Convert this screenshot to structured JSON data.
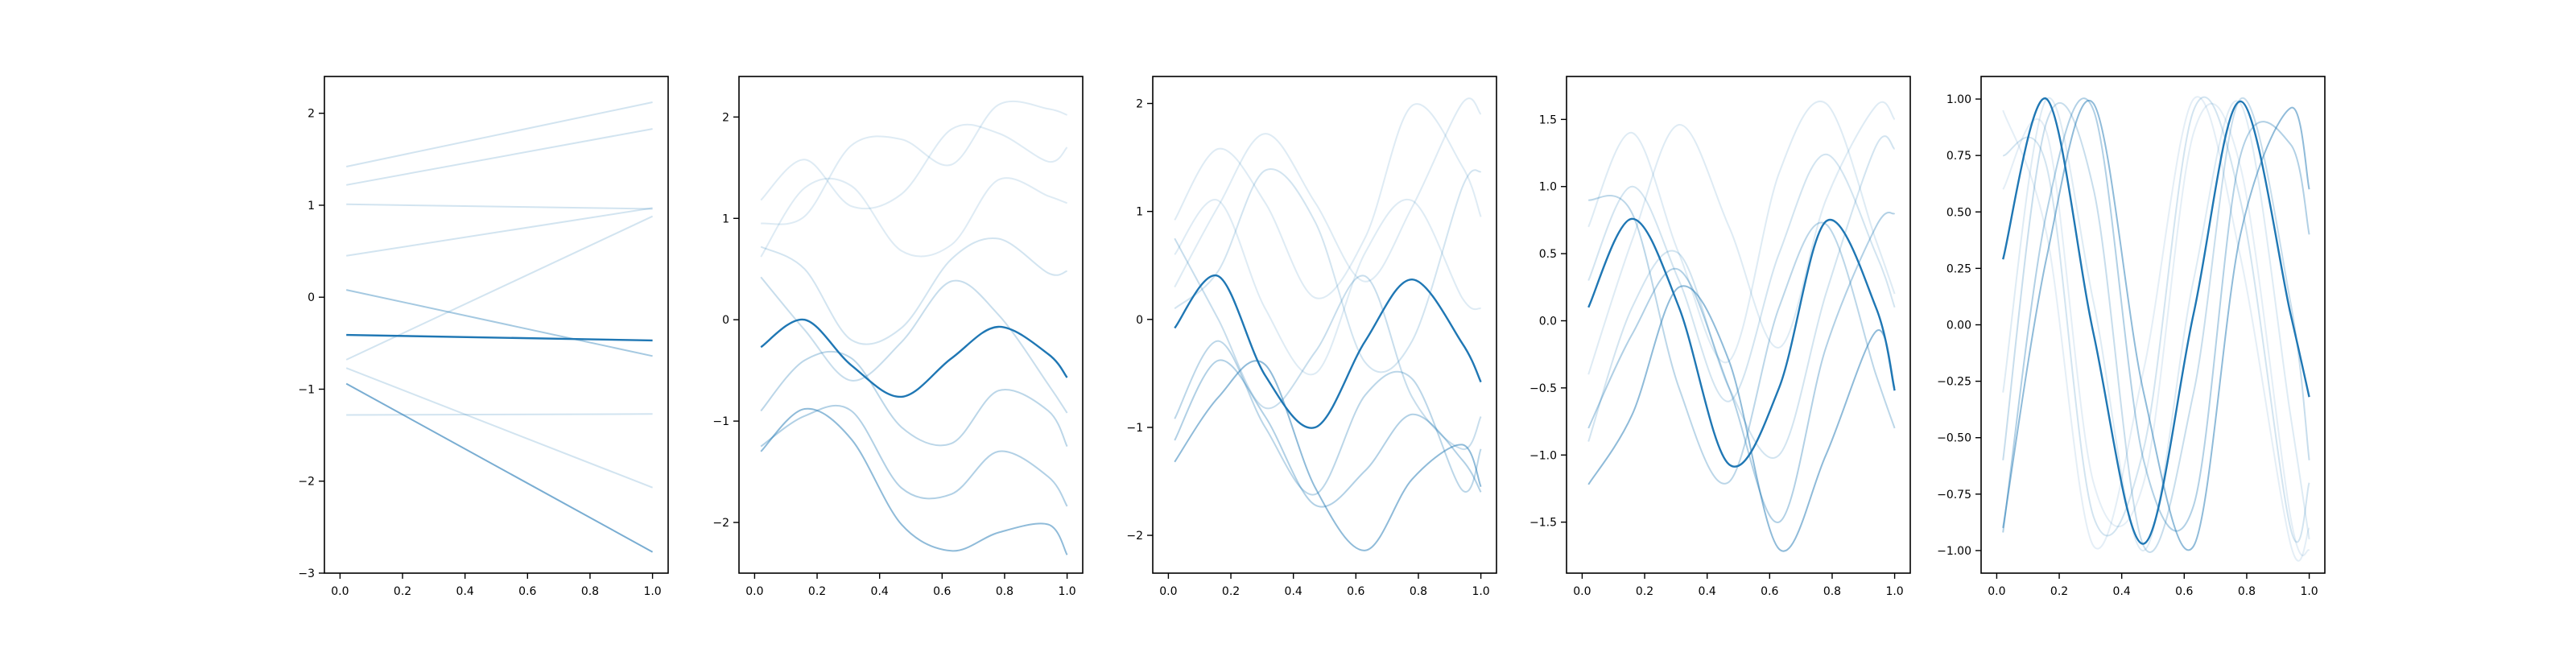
{
  "chart_data": [
    {
      "type": "line",
      "xlim": [
        -0.05,
        1.05
      ],
      "ylim": [
        -3.0,
        2.4
      ],
      "xticks": [
        "0.0",
        "0.2",
        "0.4",
        "0.6",
        "0.8",
        "1.0"
      ],
      "xtick_values": [
        0.0,
        0.2,
        0.4,
        0.6,
        0.8,
        1.0
      ],
      "yticks": [
        "−3",
        "−2",
        "−1",
        "0",
        "1",
        "2"
      ],
      "ytick_values": [
        -3,
        -2,
        -1,
        0,
        1,
        2
      ],
      "grid": false,
      "series": [
        {
          "color": "#1f77b4",
          "opacity": 0.2,
          "x": [
            0.02,
            1.0
          ],
          "y": [
            1.42,
            2.12
          ]
        },
        {
          "color": "#1f77b4",
          "opacity": 0.2,
          "x": [
            0.02,
            1.0
          ],
          "y": [
            1.22,
            1.83
          ]
        },
        {
          "color": "#1f77b4",
          "opacity": 0.2,
          "x": [
            0.02,
            1.0
          ],
          "y": [
            1.01,
            0.96
          ]
        },
        {
          "color": "#1f77b4",
          "opacity": 0.2,
          "x": [
            0.02,
            1.0
          ],
          "y": [
            0.45,
            0.97
          ]
        },
        {
          "color": "#1f77b4",
          "opacity": 0.2,
          "x": [
            0.02,
            1.0
          ],
          "y": [
            -0.68,
            0.88
          ]
        },
        {
          "color": "#1f77b4",
          "opacity": 0.4,
          "x": [
            0.02,
            1.0
          ],
          "y": [
            0.08,
            -0.64
          ]
        },
        {
          "color": "#1f77b4",
          "opacity": 0.2,
          "x": [
            0.02,
            1.0
          ],
          "y": [
            -0.77,
            -2.07
          ]
        },
        {
          "color": "#1f77b4",
          "opacity": 0.2,
          "x": [
            0.02,
            1.0
          ],
          "y": [
            -1.28,
            -1.27
          ]
        },
        {
          "color": "#1f77b4",
          "opacity": 0.6,
          "x": [
            0.02,
            1.0
          ],
          "y": [
            -0.94,
            -2.77
          ]
        },
        {
          "color": "#1f77b4",
          "opacity": 1.0,
          "x": [
            0.02,
            1.0
          ],
          "y": [
            -0.41,
            -0.47
          ]
        }
      ]
    },
    {
      "type": "line",
      "xlim": [
        -0.05,
        1.05
      ],
      "ylim": [
        -2.5,
        2.4
      ],
      "xticks": [
        "0.0",
        "0.2",
        "0.4",
        "0.6",
        "0.8",
        "1.0"
      ],
      "xtick_values": [
        0.0,
        0.2,
        0.4,
        0.6,
        0.8,
        1.0
      ],
      "yticks": [
        "−2",
        "−1",
        "0",
        "1",
        "2"
      ],
      "ytick_values": [
        -2,
        -1,
        0,
        1,
        2
      ],
      "grid": false,
      "series": [
        {
          "color": "#1f77b4",
          "opacity": 0.15,
          "x": [
            0.02,
            0.16,
            0.31,
            0.47,
            0.63,
            0.78,
            0.94,
            1.0
          ],
          "y": [
            1.18,
            1.58,
            1.12,
            1.24,
            1.88,
            1.84,
            1.56,
            1.7
          ]
        },
        {
          "color": "#1f77b4",
          "opacity": 0.15,
          "x": [
            0.02,
            0.16,
            0.31,
            0.47,
            0.63,
            0.78,
            0.94,
            1.0
          ],
          "y": [
            0.95,
            1.02,
            1.72,
            1.78,
            1.53,
            2.12,
            2.08,
            2.02
          ]
        },
        {
          "color": "#1f77b4",
          "opacity": 0.15,
          "x": [
            0.02,
            0.16,
            0.31,
            0.47,
            0.63,
            0.78,
            0.94,
            1.0
          ],
          "y": [
            0.62,
            1.3,
            1.32,
            0.68,
            0.74,
            1.38,
            1.22,
            1.15
          ]
        },
        {
          "color": "#1f77b4",
          "opacity": 0.2,
          "x": [
            0.02,
            0.16,
            0.31,
            0.47,
            0.63,
            0.78,
            0.94,
            1.0
          ],
          "y": [
            0.72,
            0.5,
            -0.2,
            -0.08,
            0.6,
            0.8,
            0.46,
            0.48
          ]
        },
        {
          "color": "#1f77b4",
          "opacity": 0.25,
          "x": [
            0.02,
            0.16,
            0.31,
            0.47,
            0.63,
            0.78,
            0.94,
            1.0
          ],
          "y": [
            0.42,
            -0.1,
            -0.6,
            -0.22,
            0.38,
            0.05,
            -0.64,
            -0.92
          ]
        },
        {
          "color": "#1f77b4",
          "opacity": 0.3,
          "x": [
            0.02,
            0.16,
            0.31,
            0.47,
            0.63,
            0.78,
            0.94,
            1.0
          ],
          "y": [
            -0.9,
            -0.4,
            -0.38,
            -1.06,
            -1.22,
            -0.7,
            -0.9,
            -1.25
          ]
        },
        {
          "color": "#1f77b4",
          "opacity": 0.35,
          "x": [
            0.02,
            0.16,
            0.31,
            0.47,
            0.63,
            0.78,
            0.94,
            1.0
          ],
          "y": [
            -1.25,
            -0.95,
            -0.9,
            -1.66,
            -1.72,
            -1.3,
            -1.55,
            -1.84
          ]
        },
        {
          "color": "#1f77b4",
          "opacity": 0.5,
          "x": [
            0.02,
            0.16,
            0.31,
            0.47,
            0.63,
            0.78,
            0.94,
            1.0
          ],
          "y": [
            -1.3,
            -0.88,
            -1.18,
            -2.02,
            -2.28,
            -2.1,
            -2.02,
            -2.32
          ]
        },
        {
          "color": "#1f77b4",
          "opacity": 1.0,
          "x": [
            0.02,
            0.16,
            0.31,
            0.47,
            0.63,
            0.78,
            0.94,
            1.0
          ],
          "y": [
            -0.27,
            0.0,
            -0.45,
            -0.76,
            -0.38,
            -0.07,
            -0.34,
            -0.57
          ]
        }
      ]
    },
    {
      "type": "line",
      "xlim": [
        -0.05,
        1.05
      ],
      "ylim": [
        -2.35,
        2.25
      ],
      "xticks": [
        "0.0",
        "0.2",
        "0.4",
        "0.6",
        "0.8",
        "1.0"
      ],
      "xtick_values": [
        0.0,
        0.2,
        0.4,
        0.6,
        0.8,
        1.0
      ],
      "yticks": [
        "−2",
        "−1",
        "0",
        "1",
        "2"
      ],
      "ytick_values": [
        -2,
        -1,
        0,
        1,
        2
      ],
      "grid": false,
      "series": [
        {
          "color": "#1f77b4",
          "opacity": 0.15,
          "x": [
            0.02,
            0.16,
            0.31,
            0.47,
            0.63,
            0.78,
            0.94,
            1.0
          ],
          "y": [
            0.92,
            1.58,
            1.08,
            0.2,
            0.76,
            1.98,
            1.42,
            0.95
          ]
        },
        {
          "color": "#1f77b4",
          "opacity": 0.15,
          "x": [
            0.02,
            0.16,
            0.31,
            0.47,
            0.63,
            0.78,
            0.94,
            1.0
          ],
          "y": [
            0.3,
            1.05,
            1.72,
            1.08,
            0.35,
            1.04,
            2.0,
            1.9
          ]
        },
        {
          "color": "#1f77b4",
          "opacity": 0.15,
          "x": [
            0.02,
            0.16,
            0.31,
            0.47,
            0.63,
            0.78,
            0.94,
            1.0
          ],
          "y": [
            0.6,
            1.1,
            0.1,
            -0.5,
            0.62,
            1.1,
            0.2,
            0.1
          ]
        },
        {
          "color": "#1f77b4",
          "opacity": 0.2,
          "x": [
            0.02,
            0.16,
            0.31,
            0.47,
            0.63,
            0.78,
            0.94,
            1.0
          ],
          "y": [
            0.1,
            0.45,
            1.38,
            0.9,
            -0.4,
            -0.2,
            1.22,
            1.37
          ]
        },
        {
          "color": "#1f77b4",
          "opacity": 0.25,
          "x": [
            0.02,
            0.16,
            0.31,
            0.47,
            0.63,
            0.78,
            0.94,
            1.0
          ],
          "y": [
            0.75,
            0.0,
            -0.82,
            -0.3,
            0.4,
            -0.72,
            -1.2,
            -0.9
          ]
        },
        {
          "color": "#1f77b4",
          "opacity": 0.3,
          "x": [
            0.02,
            0.16,
            0.31,
            0.47,
            0.63,
            0.78,
            0.94,
            1.0
          ],
          "y": [
            -0.92,
            -0.2,
            -1.0,
            -1.62,
            -0.7,
            -0.55,
            -1.58,
            -1.2
          ]
        },
        {
          "color": "#1f77b4",
          "opacity": 0.35,
          "x": [
            0.02,
            0.16,
            0.31,
            0.47,
            0.63,
            0.78,
            0.94,
            1.0
          ],
          "y": [
            -1.12,
            -0.38,
            -0.9,
            -1.72,
            -1.4,
            -0.88,
            -1.3,
            -1.6
          ]
        },
        {
          "color": "#1f77b4",
          "opacity": 0.5,
          "x": [
            0.02,
            0.16,
            0.31,
            0.47,
            0.63,
            0.78,
            0.94,
            1.0
          ],
          "y": [
            -1.32,
            -0.72,
            -0.42,
            -1.56,
            -2.14,
            -1.48,
            -1.16,
            -1.55
          ]
        },
        {
          "color": "#1f77b4",
          "opacity": 1.0,
          "x": [
            0.02,
            0.16,
            0.31,
            0.47,
            0.63,
            0.78,
            0.94,
            1.0
          ],
          "y": [
            -0.08,
            0.4,
            -0.52,
            -1.0,
            -0.2,
            0.37,
            -0.22,
            -0.58
          ]
        }
      ]
    },
    {
      "type": "line",
      "xlim": [
        -0.05,
        1.05
      ],
      "ylim": [
        -1.88,
        1.82
      ],
      "xticks": [
        "0.0",
        "0.2",
        "0.4",
        "0.6",
        "0.8",
        "1.0"
      ],
      "xtick_values": [
        0.0,
        0.2,
        0.4,
        0.6,
        0.8,
        1.0
      ],
      "yticks": [
        "−1.5",
        "−1.0",
        "−0.5",
        "0.0",
        "0.5",
        "1.0",
        "1.5"
      ],
      "ytick_values": [
        -1.5,
        -1.0,
        -0.5,
        0.0,
        0.5,
        1.0,
        1.5
      ],
      "grid": false,
      "series": [
        {
          "color": "#1f77b4",
          "opacity": 0.15,
          "x": [
            0.02,
            0.16,
            0.31,
            0.47,
            0.63,
            0.78,
            0.94,
            1.0
          ],
          "y": [
            0.7,
            1.4,
            0.5,
            -0.3,
            1.1,
            1.62,
            0.6,
            0.2
          ]
        },
        {
          "color": "#1f77b4",
          "opacity": 0.15,
          "x": [
            0.02,
            0.16,
            0.31,
            0.47,
            0.63,
            0.78,
            0.94,
            1.0
          ],
          "y": [
            -0.4,
            0.6,
            1.46,
            0.7,
            -0.2,
            0.9,
            1.6,
            1.5
          ]
        },
        {
          "color": "#1f77b4",
          "opacity": 0.2,
          "x": [
            0.02,
            0.16,
            0.31,
            0.47,
            0.63,
            0.78,
            0.94,
            1.0
          ],
          "y": [
            0.3,
            1.0,
            0.3,
            -0.6,
            0.5,
            1.24,
            0.5,
            0.1
          ]
        },
        {
          "color": "#1f77b4",
          "opacity": 0.2,
          "x": [
            0.02,
            0.16,
            0.31,
            0.47,
            0.63,
            0.78,
            0.94,
            1.0
          ],
          "y": [
            -0.9,
            0.1,
            0.5,
            -0.5,
            -1.0,
            0.2,
            1.3,
            1.28
          ]
        },
        {
          "color": "#1f77b4",
          "opacity": 0.3,
          "x": [
            0.02,
            0.16,
            0.31,
            0.47,
            0.63,
            0.78,
            0.94,
            1.0
          ],
          "y": [
            0.9,
            0.8,
            -0.5,
            -1.2,
            0.1,
            0.72,
            -0.4,
            -0.8
          ]
        },
        {
          "color": "#1f77b4",
          "opacity": 0.35,
          "x": [
            0.02,
            0.16,
            0.31,
            0.47,
            0.63,
            0.78,
            0.94,
            1.0
          ],
          "y": [
            -0.8,
            -0.1,
            0.38,
            -0.5,
            -1.5,
            -0.2,
            0.7,
            0.8
          ]
        },
        {
          "color": "#1f77b4",
          "opacity": 0.5,
          "x": [
            0.02,
            0.16,
            0.31,
            0.47,
            0.63,
            0.78,
            0.94,
            1.0
          ],
          "y": [
            -1.22,
            -0.7,
            0.25,
            -0.3,
            -1.7,
            -1.0,
            -0.08,
            -0.5
          ]
        },
        {
          "color": "#1f77b4",
          "opacity": 1.0,
          "x": [
            0.02,
            0.16,
            0.31,
            0.47,
            0.63,
            0.78,
            0.94,
            1.0
          ],
          "y": [
            0.1,
            0.76,
            0.1,
            -1.07,
            -0.5,
            0.74,
            0.1,
            -0.52
          ]
        }
      ]
    },
    {
      "type": "line",
      "xlim": [
        -0.05,
        1.05
      ],
      "ylim": [
        -1.1,
        1.1
      ],
      "xticks": [
        "0.0",
        "0.2",
        "0.4",
        "0.6",
        "0.8",
        "1.0"
      ],
      "xtick_values": [
        0.0,
        0.2,
        0.4,
        0.6,
        0.8,
        1.0
      ],
      "yticks": [
        "−1.00",
        "−0.75",
        "−0.50",
        "−0.25",
        "0.00",
        "0.25",
        "0.50",
        "0.75",
        "1.00"
      ],
      "ytick_values": [
        -1.0,
        -0.75,
        -0.5,
        -0.25,
        0.0,
        0.25,
        0.5,
        0.75,
        1.0
      ],
      "grid": false,
      "series": [
        {
          "color": "#1f77b4",
          "opacity": 0.12,
          "x": [
            0.02,
            0.16,
            0.31,
            0.47,
            0.63,
            0.78,
            0.94,
            1.0
          ],
          "y": [
            0.95,
            0.4,
            -0.98,
            -0.2,
            1.0,
            0.3,
            -0.97,
            -0.9
          ]
        },
        {
          "color": "#1f77b4",
          "opacity": 0.12,
          "x": [
            0.02,
            0.16,
            0.31,
            0.47,
            0.63,
            0.78,
            0.94,
            1.0
          ],
          "y": [
            0.6,
            0.85,
            -0.7,
            -0.7,
            0.85,
            0.7,
            -0.85,
            -1.0
          ]
        },
        {
          "color": "#1f77b4",
          "opacity": 0.15,
          "x": [
            0.02,
            0.16,
            0.31,
            0.47,
            0.63,
            0.78,
            0.94,
            1.0
          ],
          "y": [
            -0.3,
            1.0,
            0.1,
            -1.0,
            0.2,
            0.98,
            -0.4,
            -0.95
          ]
        },
        {
          "color": "#1f77b4",
          "opacity": 0.2,
          "x": [
            0.02,
            0.16,
            0.31,
            0.47,
            0.63,
            0.78,
            0.94,
            1.0
          ],
          "y": [
            0.75,
            0.7,
            -0.85,
            -0.55,
            0.95,
            0.55,
            -0.9,
            -0.7
          ]
        },
        {
          "color": "#1f77b4",
          "opacity": 0.25,
          "x": [
            0.02,
            0.16,
            0.31,
            0.47,
            0.63,
            0.78,
            0.94,
            1.0
          ],
          "y": [
            -0.6,
            0.9,
            0.6,
            -0.98,
            -0.3,
            1.0,
            0.1,
            -0.6
          ]
        },
        {
          "color": "#1f77b4",
          "opacity": 0.35,
          "x": [
            0.02,
            0.16,
            0.31,
            0.47,
            0.63,
            0.78,
            0.94,
            1.0
          ],
          "y": [
            -0.92,
            0.5,
            0.95,
            -0.6,
            -0.8,
            0.75,
            0.8,
            0.4
          ]
        },
        {
          "color": "#1f77b4",
          "opacity": 0.5,
          "x": [
            0.02,
            0.16,
            0.31,
            0.47,
            0.63,
            0.78,
            0.94,
            1.0
          ],
          "y": [
            -0.9,
            0.3,
            0.98,
            -0.3,
            -0.98,
            0.4,
            0.96,
            0.6
          ]
        },
        {
          "color": "#1f77b4",
          "opacity": 1.0,
          "x": [
            0.02,
            0.16,
            0.31,
            0.47,
            0.63,
            0.78,
            0.94,
            1.0
          ],
          "y": [
            0.29,
            1.0,
            -0.04,
            -0.97,
            0.05,
            0.99,
            0.05,
            -0.32
          ]
        }
      ]
    }
  ]
}
